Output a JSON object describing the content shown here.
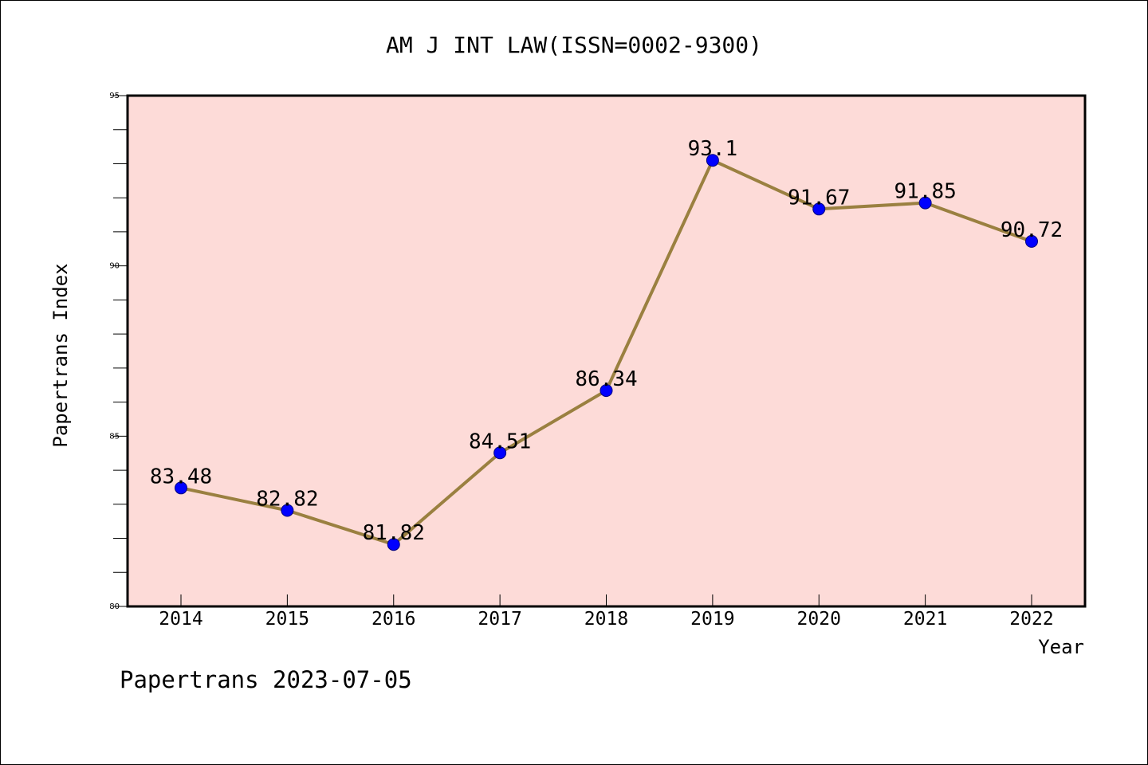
{
  "chart_data": {
    "type": "line",
    "title": "AM J INT LAW(ISSN=0002-9300)",
    "xlabel": "Year",
    "ylabel": "Papertrans Index",
    "categories": [
      "2014",
      "2015",
      "2016",
      "2017",
      "2018",
      "2019",
      "2020",
      "2021",
      "2022"
    ],
    "values": [
      83.48,
      82.82,
      81.82,
      84.51,
      86.34,
      93.1,
      91.67,
      91.85,
      90.72
    ],
    "data_labels": [
      "83.48",
      "82.82",
      "81.82",
      "84.51",
      "86.34",
      "93.1",
      "91.67",
      "91.85",
      "90.72"
    ],
    "ylim": [
      80,
      95
    ],
    "yticks": [
      80,
      85,
      90,
      95
    ],
    "ytick_labels": [
      "80",
      "85",
      "90",
      "95"
    ],
    "grid": false,
    "legend": "none",
    "colors": {
      "plot_background": "#fddbd8",
      "line": "#9a8040",
      "marker": "#0000ff",
      "marker_edge": "#000080"
    }
  },
  "footer": {
    "text": "Papertrans 2023-07-05"
  }
}
